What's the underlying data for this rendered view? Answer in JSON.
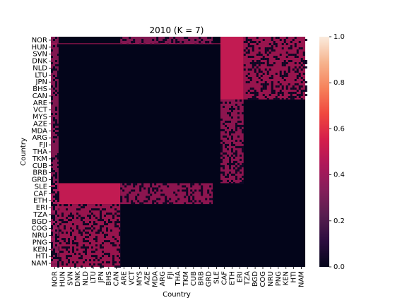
{
  "chart_data": {
    "type": "heatmap",
    "title": "2010 (K = 7)",
    "xlabel": "Country",
    "ylabel": "Country",
    "tick_labels": [
      "NOR",
      "HUN",
      "SVN",
      "DNK",
      "NLD",
      "LTU",
      "JPN",
      "BHS",
      "CAN",
      "ARE",
      "VCT",
      "MYS",
      "AZE",
      "MDA",
      "ARG",
      "FJI",
      "THA",
      "TKM",
      "CUB",
      "BRB",
      "GRD",
      "SLE",
      "CAF",
      "ETH",
      "ERI",
      "TZA",
      "BGD",
      "COG",
      "NRU",
      "PNG",
      "KEN",
      "HTI",
      "NAM"
    ],
    "colorbar": {
      "min": 0.0,
      "max": 1.0,
      "ticks": [
        "0.0",
        "0.2",
        "0.4",
        "0.6",
        "0.8",
        "1.0"
      ]
    },
    "colormap": [
      "#03051a",
      "#2b0c3e",
      "#571e4f",
      "#841e5a",
      "#ae1759",
      "#d51e4a",
      "#f0483e",
      "#f6825b",
      "#f6b48e",
      "#faebdd"
    ],
    "blocks": [
      {
        "rows": [
          0,
          9
        ],
        "cols": [
          22,
          25
        ],
        "value": 0.5
      },
      {
        "rows": [
          0,
          9
        ],
        "cols": [
          25,
          33
        ],
        "value": 0.46,
        "speckled": true
      },
      {
        "rows": [
          9,
          21
        ],
        "cols": [
          22,
          25
        ],
        "value": 0.42,
        "speckled": true
      },
      {
        "rows": [
          21,
          24
        ],
        "cols": [
          0,
          9
        ],
        "value": 0.5
      },
      {
        "rows": [
          24,
          33
        ],
        "cols": [
          0,
          9
        ],
        "value": 0.46,
        "speckled": true
      },
      {
        "rows": [
          21,
          24
        ],
        "cols": [
          9,
          21
        ],
        "value": 0.42,
        "speckled": true
      },
      {
        "rows": [
          0,
          33
        ],
        "cols": [
          0,
          1
        ],
        "value": 0.38,
        "speckled": true
      },
      {
        "rows": [
          0,
          1
        ],
        "cols": [
          9,
          21
        ],
        "value": 0.38,
        "speckled": true
      }
    ]
  }
}
